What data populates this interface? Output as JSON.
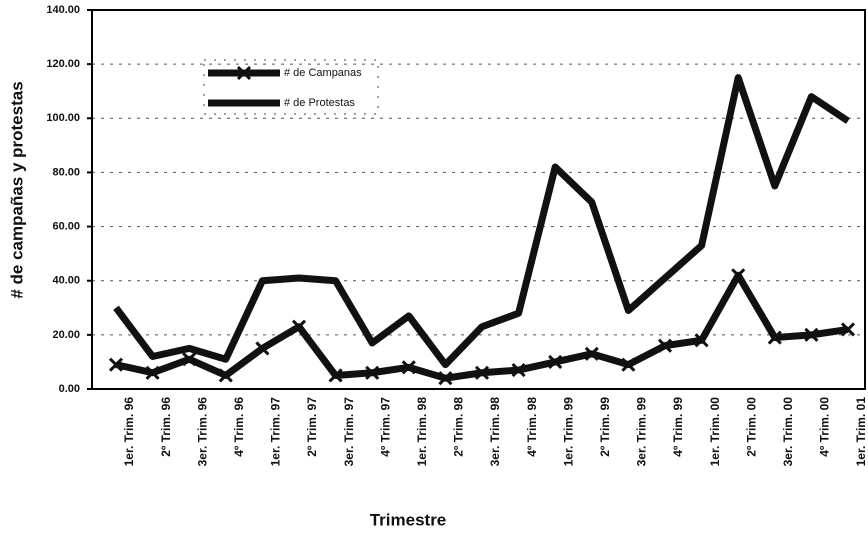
{
  "chart_data": {
    "type": "line",
    "y_label": "# de campañas y protestas",
    "x_label": "Trimestre",
    "categories": [
      "1er. Trim. 96",
      "2º Trim. 96",
      "3er. Trim. 96",
      "4º Trim. 96",
      "1er. Trim. 97",
      "2º Trim. 97",
      "3er. Trim. 97",
      "4º Trim. 97",
      "1er. Trim. 98",
      "2º Trim. 98",
      "3er. Trim. 98",
      "4º Trim. 98",
      "1er. Trim. 99",
      "2º Trim. 99",
      "3er. Trim. 99",
      "4º Trim. 99",
      "1er. Trim. 00",
      "2º Trim. 00",
      "3er. Trim. 00",
      "4º Trim. 00",
      "1er. Trim. 01"
    ],
    "series": [
      {
        "name": "# de Campanas",
        "color": "#111111",
        "marker": "x",
        "values": [
          9,
          6,
          11,
          5,
          15,
          23,
          5,
          6,
          8,
          4,
          6,
          7,
          10,
          13,
          9,
          16,
          18,
          42,
          19,
          20,
          22
        ]
      },
      {
        "name": "# de Protestas",
        "color": "#111111",
        "values": [
          30,
          12,
          15,
          11,
          40,
          41,
          40,
          17,
          27,
          9,
          23,
          28,
          82,
          69,
          29,
          41,
          53,
          115,
          75,
          108,
          99
        ]
      }
    ],
    "ylim": [
      0,
      140
    ],
    "yticks": [
      {
        "value": 0,
        "label": "0.00"
      },
      {
        "value": 20,
        "label": "20.00"
      },
      {
        "value": 40,
        "label": "40.00"
      },
      {
        "value": 60,
        "label": "60.00"
      },
      {
        "value": 80,
        "label": "80.00"
      },
      {
        "value": 100,
        "label": "100.00"
      },
      {
        "value": 120,
        "label": "120.00"
      },
      {
        "value": 140,
        "label": "140.00"
      }
    ],
    "grid": true,
    "legend": "upper-left"
  }
}
